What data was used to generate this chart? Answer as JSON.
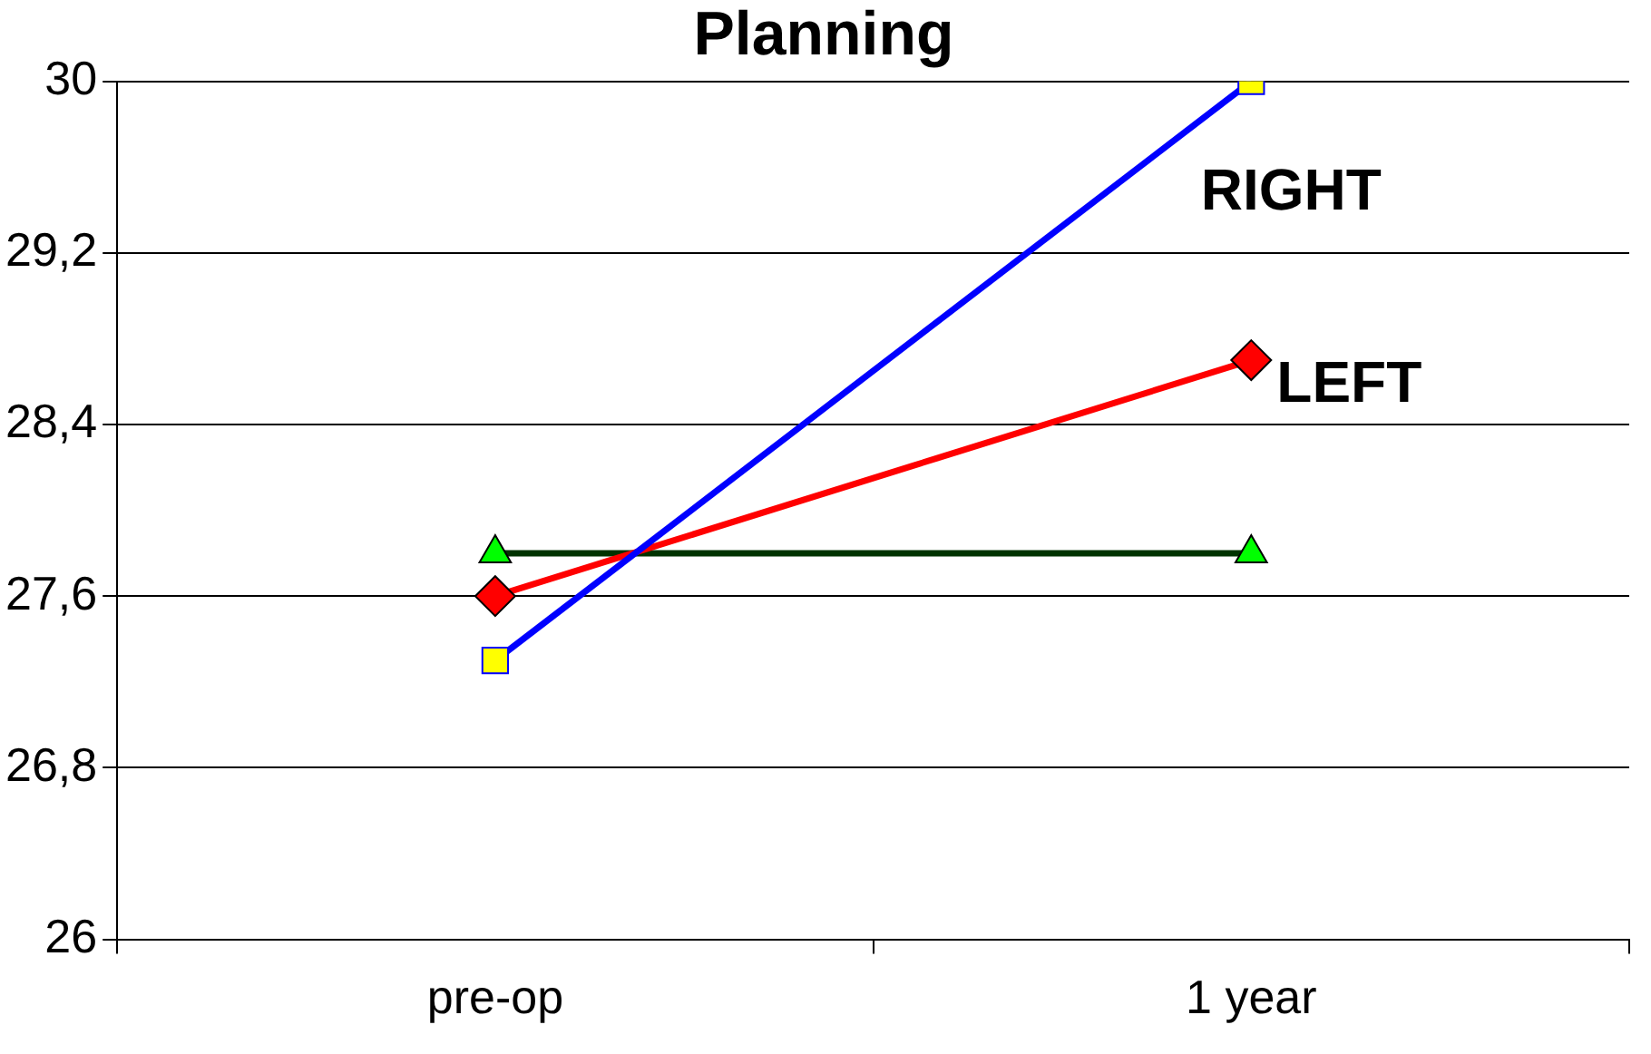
{
  "chart_data": {
    "type": "line",
    "title": "Planning",
    "categories": [
      "pre-op",
      "1 year"
    ],
    "series": [
      {
        "name": "RIGHT",
        "color": "#0000ff",
        "values": [
          27.3,
          30
        ],
        "marker": "square",
        "colors": [
          "#ffff00",
          "#ffff00"
        ]
      },
      {
        "name": "LEFT",
        "color": "#ff0000",
        "values": [
          27.6,
          28.7
        ],
        "marker": "diamond",
        "colors": [
          "#ff0000",
          "#ff0000"
        ]
      },
      {
        "color": "#003300",
        "values": [
          27.8,
          27.8
        ],
        "marker": "triangle",
        "colors": [
          "#00ff00",
          "#00ff00"
        ]
      }
    ],
    "ylim": [
      26,
      30
    ],
    "yticks": [
      26,
      {
        "value": 26.8,
        "label": "26,8"
      },
      {
        "value": 27.6,
        "label": "27,6"
      },
      {
        "value": 28.4,
        "label": "28,4"
      },
      {
        "value": 29.2,
        "label": "29,2"
      },
      30
    ],
    "grid": "y",
    "legend": false,
    "line_style": "solid"
  }
}
